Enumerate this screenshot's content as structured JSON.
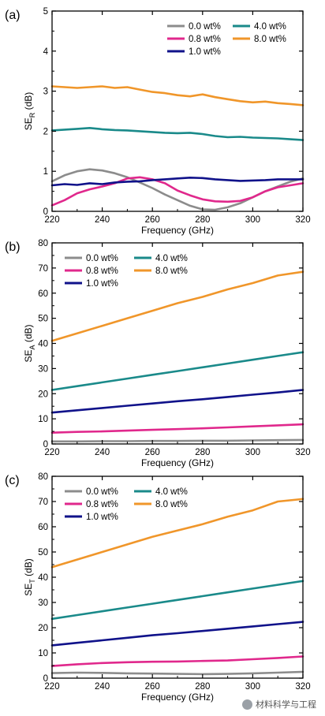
{
  "x_ticks": [
    "220",
    "240",
    "260",
    "280",
    "300",
    "320"
  ],
  "chart_data": [
    {
      "type": "line",
      "panel_label": "(a)",
      "xlabel": "Frequency (GHz)",
      "ylabel": "SE",
      "ylabel_sub": "R",
      "ylabel_unit": "(dB)",
      "xlim": [
        220,
        320
      ],
      "ylim": [
        0,
        5
      ],
      "yticks": [
        "0",
        "1",
        "2",
        "3",
        "4",
        "5"
      ],
      "ytick_values": [
        0,
        1,
        2,
        3,
        4,
        5
      ],
      "x": [
        220,
        225,
        230,
        235,
        240,
        245,
        250,
        255,
        260,
        265,
        270,
        275,
        280,
        285,
        290,
        295,
        300,
        305,
        310,
        315,
        320
      ],
      "series": [
        {
          "name": "0.0 wt%",
          "color": "#8c8c8c",
          "values": [
            0.75,
            0.9,
            1.0,
            1.05,
            1.02,
            0.95,
            0.85,
            0.72,
            0.58,
            0.42,
            0.28,
            0.14,
            0.05,
            0.04,
            0.1,
            0.2,
            0.35,
            0.5,
            0.62,
            0.74,
            0.82
          ]
        },
        {
          "name": "4.0 wt%",
          "color": "#1a8a8a",
          "values": [
            2.02,
            2.04,
            2.06,
            2.08,
            2.05,
            2.03,
            2.02,
            2.0,
            1.98,
            1.96,
            1.95,
            1.96,
            1.93,
            1.88,
            1.85,
            1.86,
            1.84,
            1.83,
            1.82,
            1.8,
            1.78
          ]
        },
        {
          "name": "0.8 wt%",
          "color": "#e0288c",
          "values": [
            0.15,
            0.28,
            0.45,
            0.55,
            0.62,
            0.7,
            0.82,
            0.85,
            0.8,
            0.7,
            0.52,
            0.4,
            0.3,
            0.25,
            0.24,
            0.26,
            0.35,
            0.5,
            0.6,
            0.65,
            0.7
          ]
        },
        {
          "name": "8.0 wt%",
          "color": "#f0962a",
          "values": [
            3.12,
            3.1,
            3.08,
            3.1,
            3.12,
            3.08,
            3.1,
            3.04,
            2.98,
            2.95,
            2.9,
            2.87,
            2.92,
            2.85,
            2.8,
            2.75,
            2.72,
            2.74,
            2.7,
            2.68,
            2.65
          ]
        },
        {
          "name": "1.0 wt%",
          "color": "#10128a",
          "values": [
            0.65,
            0.68,
            0.66,
            0.7,
            0.68,
            0.72,
            0.74,
            0.75,
            0.78,
            0.8,
            0.82,
            0.84,
            0.83,
            0.8,
            0.78,
            0.76,
            0.77,
            0.78,
            0.8,
            0.8,
            0.8
          ]
        }
      ]
    },
    {
      "type": "line",
      "panel_label": "(b)",
      "xlabel": "Frequency (GHz)",
      "ylabel": "SE",
      "ylabel_sub": "A",
      "ylabel_unit": "(dB)",
      "xlim": [
        220,
        320
      ],
      "ylim": [
        0,
        80
      ],
      "yticks": [
        "0",
        "10",
        "20",
        "30",
        "40",
        "50",
        "60",
        "70",
        "80"
      ],
      "ytick_values": [
        0,
        10,
        20,
        30,
        40,
        50,
        60,
        70,
        80
      ],
      "x": [
        220,
        230,
        240,
        250,
        260,
        270,
        280,
        290,
        300,
        310,
        320
      ],
      "series": [
        {
          "name": "0.0 wt%",
          "color": "#8c8c8c",
          "values": [
            1.0,
            1.0,
            1.1,
            1.1,
            1.2,
            1.2,
            1.3,
            1.3,
            1.4,
            1.5,
            1.6
          ]
        },
        {
          "name": "4.0 wt%",
          "color": "#1a8a8a",
          "values": [
            21.5,
            23.0,
            24.5,
            26.0,
            27.5,
            29.0,
            30.5,
            32.0,
            33.5,
            35.0,
            36.5
          ]
        },
        {
          "name": "0.8 wt%",
          "color": "#e0288c",
          "values": [
            4.5,
            4.8,
            5.0,
            5.3,
            5.6,
            5.9,
            6.2,
            6.6,
            7.0,
            7.4,
            7.8
          ]
        },
        {
          "name": "8.0 wt%",
          "color": "#f0962a",
          "values": [
            41.0,
            44.0,
            47.0,
            50.0,
            53.0,
            56.0,
            58.5,
            61.5,
            64.0,
            67.0,
            68.5
          ]
        },
        {
          "name": "1.0 wt%",
          "color": "#10128a",
          "values": [
            12.5,
            13.4,
            14.3,
            15.2,
            16.1,
            17.0,
            17.8,
            18.7,
            19.6,
            20.5,
            21.5
          ]
        }
      ]
    },
    {
      "type": "line",
      "panel_label": "(c)",
      "xlabel": "Frequency (GHz)",
      "ylabel": "SE",
      "ylabel_sub": "T",
      "ylabel_unit": "(dB)",
      "xlim": [
        220,
        320
      ],
      "ylim": [
        0,
        80
      ],
      "yticks": [
        "0",
        "10",
        "20",
        "30",
        "40",
        "50",
        "60",
        "70",
        "80"
      ],
      "ytick_values": [
        0,
        10,
        20,
        30,
        40,
        50,
        60,
        70,
        80
      ],
      "x": [
        220,
        230,
        240,
        250,
        260,
        270,
        280,
        290,
        300,
        310,
        320
      ],
      "series": [
        {
          "name": "0.0 wt%",
          "color": "#8c8c8c",
          "values": [
            2.0,
            2.2,
            2.1,
            1.9,
            1.8,
            1.7,
            1.6,
            1.7,
            1.9,
            2.2,
            2.5
          ]
        },
        {
          "name": "4.0 wt%",
          "color": "#1a8a8a",
          "values": [
            23.5,
            25.0,
            26.5,
            28.0,
            29.5,
            31.0,
            32.5,
            34.0,
            35.5,
            37.0,
            38.5
          ]
        },
        {
          "name": "0.8 wt%",
          "color": "#e0288c",
          "values": [
            4.8,
            5.5,
            6.0,
            6.3,
            6.5,
            6.6,
            6.8,
            7.0,
            7.5,
            8.0,
            8.6
          ]
        },
        {
          "name": "8.0 wt%",
          "color": "#f0962a",
          "values": [
            44.0,
            47.0,
            50.0,
            53.0,
            56.0,
            58.5,
            61.0,
            64.0,
            66.5,
            70.0,
            71.0
          ]
        },
        {
          "name": "1.0 wt%",
          "color": "#10128a",
          "values": [
            13.0,
            14.0,
            15.0,
            16.0,
            17.0,
            17.8,
            18.7,
            19.6,
            20.5,
            21.4,
            22.3
          ]
        }
      ]
    }
  ],
  "watermark": {
    "text": "材料科学与工程",
    "icon": "wechat-logo-icon"
  }
}
